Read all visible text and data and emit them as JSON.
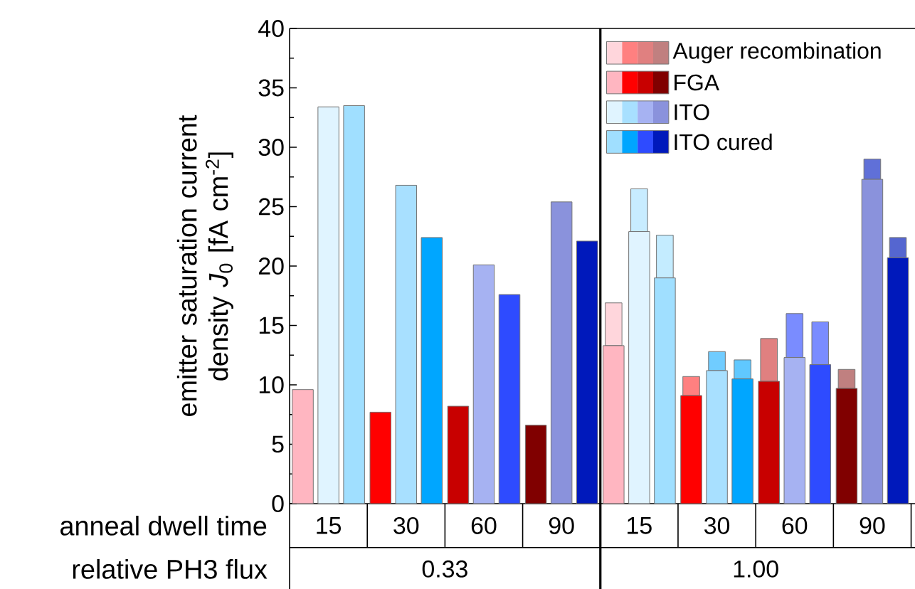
{
  "chart_data": {
    "type": "bar",
    "ylabel": "emitter saturation current density *J*$_{0}$ [fA cm$^{-2}$]",
    "xlabel": "anneal dwell time",
    "categories": [
      "15",
      "30",
      "60",
      "90",
      "15",
      "30",
      "60",
      "90"
    ],
    "annotations": [
      "relative PH3 flux",
      "0.33",
      "1.00"
    ],
    "ylim": [
      0,
      40
    ],
    "yticks": [
      0,
      5,
      10,
      15,
      20,
      25,
      30,
      35,
      40
    ],
    "legend": "top right",
    "series": [
      {
        "name": "FGA",
        "colors": [
          "#ffb6c1",
          "#ff0000",
          "#c80000",
          "#800000",
          "#ffb6c1",
          "#ff0000",
          "#c80000",
          "#800000"
        ],
        "values": [
          9.6,
          7.7,
          8.2,
          6.6,
          13.3,
          9.1,
          10.3,
          9.7
        ]
      },
      {
        "name": "Auger recombination",
        "colors": [
          null,
          null,
          null,
          null,
          "#ffd6dc",
          "#ff8080",
          "#e08080",
          "#c08080"
        ],
        "base": [
          null,
          null,
          null,
          null,
          13.3,
          9.1,
          10.3,
          9.7
        ],
        "values": [
          null,
          null,
          null,
          null,
          3.6,
          1.6,
          3.6,
          1.6
        ]
      },
      {
        "name": "ITO",
        "colors": [
          "#e0f4ff",
          "#a8e0ff",
          "#a6b2f2",
          "#8a92dc",
          "#e0f4ff",
          "#a8e0ff",
          "#a6b2f2",
          "#8a92dc"
        ],
        "values": [
          33.4,
          26.8,
          20.1,
          25.4,
          22.9,
          11.2,
          12.3,
          27.3
        ]
      },
      {
        "colors": [
          null,
          null,
          null,
          null,
          "#c8ecff",
          "#70ccff",
          "#7a8cff",
          "#6070d8"
        ],
        "base": [
          null,
          null,
          null,
          null,
          22.9,
          11.2,
          12.3,
          27.3
        ],
        "values": [
          null,
          null,
          null,
          null,
          3.6,
          1.6,
          3.7,
          1.7
        ]
      },
      {
        "name": "ITO cured",
        "colors": [
          "#a0dfff",
          "#00a6ff",
          "#2e4bff",
          "#0019bb",
          "#a0dfff",
          "#00a6ff",
          "#2e4bff",
          "#0019bb"
        ],
        "values": [
          33.5,
          22.4,
          17.6,
          22.1,
          19.0,
          10.5,
          11.7,
          20.7
        ]
      },
      {
        "colors": [
          null,
          null,
          null,
          null,
          "#c4ecff",
          "#60c8ff",
          "#7a8cff",
          "#5566d0"
        ],
        "base": [
          null,
          null,
          null,
          null,
          19.0,
          10.5,
          11.7,
          20.7
        ],
        "values": [
          null,
          null,
          null,
          null,
          3.6,
          1.6,
          3.6,
          1.7
        ]
      }
    ]
  }
}
